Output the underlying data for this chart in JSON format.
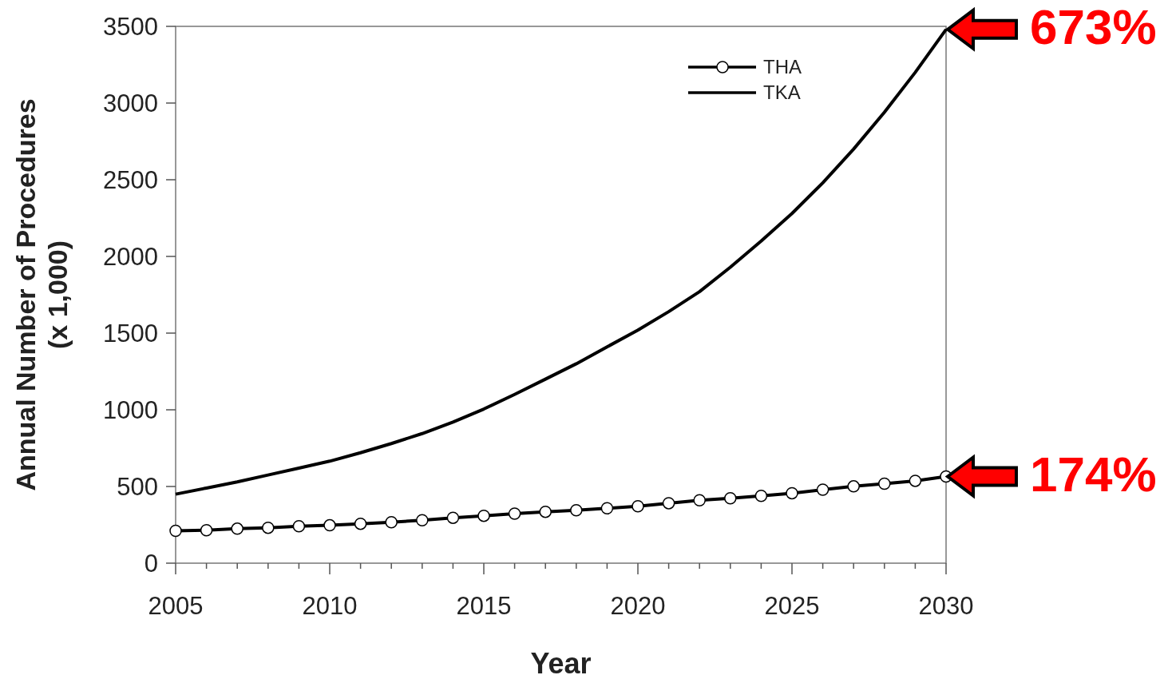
{
  "chart_data": {
    "type": "line",
    "xlabel": "Year",
    "ylabel": "Annual Number of Procedures\n(x 1,000)",
    "x": [
      2005,
      2006,
      2007,
      2008,
      2009,
      2010,
      2011,
      2012,
      2013,
      2014,
      2015,
      2016,
      2017,
      2018,
      2019,
      2020,
      2021,
      2022,
      2023,
      2024,
      2025,
      2026,
      2027,
      2028,
      2029,
      2030
    ],
    "series": [
      {
        "name": "THA",
        "color": "#000000",
        "marker": "circle",
        "values": [
          211,
          215,
          225,
          231,
          241,
          247,
          257,
          267,
          280,
          296,
          309,
          323,
          335,
          345,
          358,
          371,
          391,
          410,
          423,
          439,
          456,
          479,
          501,
          518,
          537,
          565
        ]
      },
      {
        "name": "TKA",
        "color": "#000000",
        "marker": "none",
        "values": [
          450,
          490,
          530,
          575,
          620,
          665,
          720,
          780,
          845,
          920,
          1005,
          1100,
          1200,
          1300,
          1410,
          1520,
          1640,
          1770,
          1930,
          2100,
          2280,
          2480,
          2700,
          2940,
          3200,
          3480
        ]
      }
    ],
    "xlim": [
      2005,
      2030
    ],
    "xticks": [
      2005,
      {
        "value": 2006,
        "label": null
      },
      {
        "value": 2007,
        "label": null
      },
      {
        "value": 2008,
        "label": null
      },
      {
        "value": 2009,
        "label": null
      },
      2010,
      {
        "value": 2011,
        "label": null
      },
      {
        "value": 2012,
        "label": null
      },
      {
        "value": 2013,
        "label": null
      },
      {
        "value": 2014,
        "label": null
      },
      2015,
      {
        "value": 2016,
        "label": null
      },
      {
        "value": 2017,
        "label": null
      },
      {
        "value": 2018,
        "label": null
      },
      {
        "value": 2019,
        "label": null
      },
      2020,
      {
        "value": 2021,
        "label": null
      },
      {
        "value": 2022,
        "label": null
      },
      {
        "value": 2023,
        "label": null
      },
      {
        "value": 2024,
        "label": null
      },
      2025,
      {
        "value": 2026,
        "label": null
      },
      {
        "value": 2027,
        "label": null
      },
      {
        "value": 2028,
        "label": null
      },
      {
        "value": 2029,
        "label": null
      },
      2030
    ],
    "ylim": [
      0,
      3500
    ],
    "yticks": [
      0,
      500,
      1000,
      1500,
      2000,
      2500,
      3000,
      3500
    ],
    "grid": false,
    "legend": "top right",
    "line_style": "solid",
    "annotations": [
      {
        "text": "673%",
        "x": 2030,
        "y": 3480
      },
      {
        "text": "174%",
        "x": 2030,
        "y": 565
      }
    ]
  }
}
